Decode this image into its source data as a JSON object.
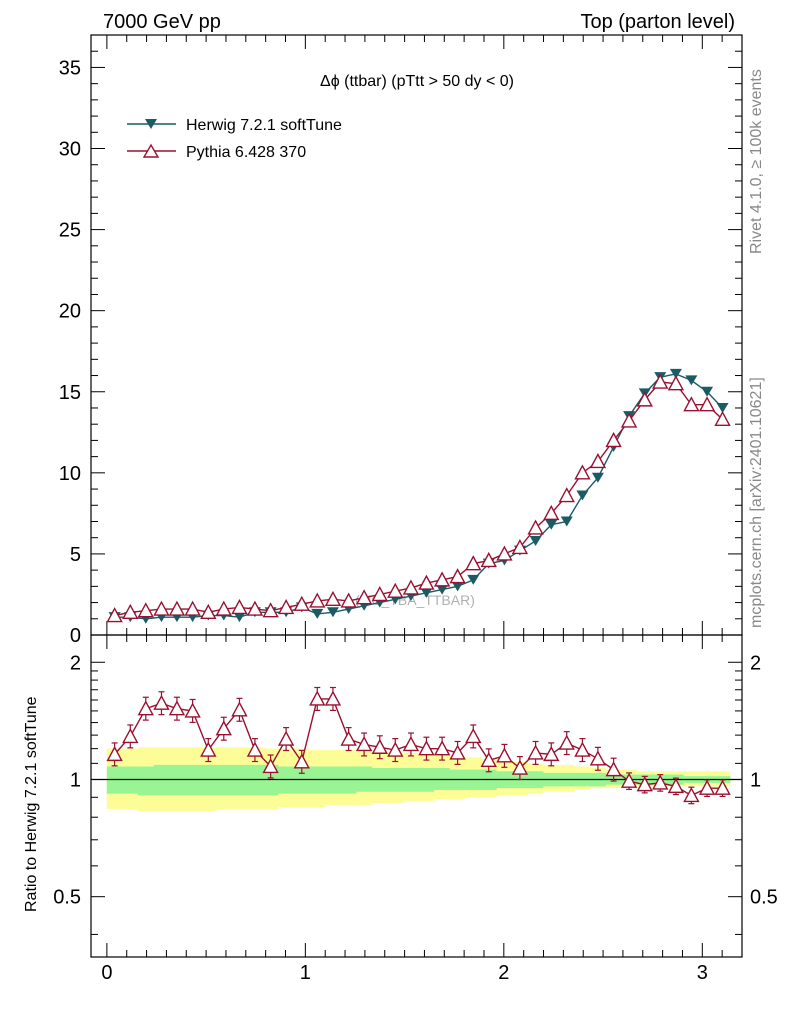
{
  "header": {
    "left": "7000 GeV pp",
    "right": "Top (parton level)"
  },
  "side_labels": {
    "rivet": "Rivet 4.1.0, ≥ 100k events",
    "mcplots": "mcplots.cern.ch [arXiv:2401.10621]"
  },
  "ratio_ylabel": "Ratio to Herwig 7.2.1 softTune",
  "watermark": "(MC_TBA_TTBAR)",
  "colors": {
    "herwig": "#1a5b66",
    "pythia": "#9b1030",
    "band_inner": "#99f594",
    "band_outer": "#fdfd98"
  },
  "chart_data": [
    {
      "type": "line",
      "title": "Δϕ (ttbar) (pTtt > 50 dy < 0)",
      "xlabel": "",
      "ylabel": "",
      "xlim": [
        -0.08,
        3.2
      ],
      "ylim": [
        0,
        37
      ],
      "xticks": [
        "0",
        "1",
        "2",
        "3"
      ],
      "yticks": [
        "0",
        "5",
        "10",
        "15",
        "20",
        "25",
        "30",
        "35"
      ],
      "legend_position": "top-left",
      "x": [
        0.039,
        0.118,
        0.196,
        0.275,
        0.353,
        0.432,
        0.511,
        0.589,
        0.668,
        0.746,
        0.825,
        0.903,
        0.982,
        1.06,
        1.139,
        1.218,
        1.296,
        1.375,
        1.453,
        1.532,
        1.61,
        1.689,
        1.767,
        1.846,
        1.924,
        2.003,
        2.081,
        2.16,
        2.239,
        2.317,
        2.396,
        2.474,
        2.553,
        2.631,
        2.71,
        2.788,
        2.867,
        2.945,
        3.024,
        3.102
      ],
      "series": [
        {
          "name": "Herwig 7.2.1 softTune",
          "marker": "filled-down-triangle",
          "values": [
            1.1,
            1.1,
            1.0,
            1.1,
            1.1,
            1.1,
            1.2,
            1.2,
            1.1,
            1.4,
            1.4,
            1.4,
            1.7,
            1.3,
            1.4,
            1.6,
            1.8,
            2.0,
            2.2,
            2.4,
            2.6,
            2.8,
            3.0,
            3.4,
            4.4,
            4.6,
            5.2,
            5.8,
            6.8,
            7.0,
            8.6,
            9.7,
            11.6,
            13.5,
            14.9,
            15.9,
            16.1,
            15.7,
            15.0,
            14.0
          ]
        },
        {
          "name": "Pythia 6.428 370",
          "marker": "open-up-triangle",
          "values": [
            1.2,
            1.4,
            1.5,
            1.6,
            1.6,
            1.6,
            1.4,
            1.6,
            1.7,
            1.6,
            1.5,
            1.7,
            1.9,
            2.1,
            2.2,
            2.1,
            2.3,
            2.5,
            2.7,
            2.9,
            3.2,
            3.4,
            3.6,
            4.4,
            4.6,
            5.0,
            5.4,
            6.6,
            7.5,
            8.6,
            10.0,
            10.7,
            12.0,
            13.2,
            14.5,
            15.6,
            15.5,
            14.2,
            14.2,
            13.3
          ]
        }
      ]
    },
    {
      "type": "line",
      "title": "",
      "xlabel": "",
      "ylabel": "Ratio to Herwig 7.2.1 softTune",
      "ylim": [
        0.35,
        2.35
      ],
      "log_scale": true,
      "yticks": [
        "0.5",
        "1",
        "2"
      ],
      "xticks": [
        "0",
        "1",
        "2",
        "3"
      ],
      "reference_line": 1,
      "x": [
        0.039,
        0.118,
        0.196,
        0.275,
        0.353,
        0.432,
        0.511,
        0.589,
        0.668,
        0.746,
        0.825,
        0.903,
        0.982,
        1.06,
        1.139,
        1.218,
        1.296,
        1.375,
        1.453,
        1.532,
        1.61,
        1.689,
        1.767,
        1.846,
        1.924,
        2.003,
        2.081,
        2.16,
        2.239,
        2.317,
        2.396,
        2.474,
        2.553,
        2.631,
        2.71,
        2.788,
        2.867,
        2.945,
        3.024,
        3.102
      ],
      "series": [
        {
          "name": "Pythia 6.428 370 / Herwig 7.2.1 softTune",
          "values": [
            1.16,
            1.29,
            1.52,
            1.57,
            1.52,
            1.5,
            1.19,
            1.35,
            1.51,
            1.19,
            1.08,
            1.27,
            1.11,
            1.61,
            1.61,
            1.27,
            1.23,
            1.21,
            1.19,
            1.23,
            1.2,
            1.2,
            1.17,
            1.29,
            1.12,
            1.15,
            1.07,
            1.17,
            1.16,
            1.24,
            1.19,
            1.13,
            1.06,
            0.99,
            0.97,
            0.98,
            0.96,
            0.91,
            0.95,
            0.95
          ]
        }
      ],
      "bands": {
        "inner_lower": [
          0.92,
          0.92,
          0.91,
          0.91,
          0.91,
          0.91,
          0.91,
          0.91,
          0.91,
          0.91,
          0.91,
          0.92,
          0.92,
          0.92,
          0.92,
          0.92,
          0.93,
          0.93,
          0.93,
          0.93,
          0.93,
          0.94,
          0.94,
          0.94,
          0.94,
          0.95,
          0.95,
          0.95,
          0.96,
          0.96,
          0.96,
          0.96,
          0.97,
          0.97,
          0.97,
          0.97,
          0.97,
          0.98,
          0.98,
          0.98
        ],
        "inner_upper": [
          1.08,
          1.08,
          1.08,
          1.09,
          1.09,
          1.09,
          1.09,
          1.09,
          1.09,
          1.09,
          1.09,
          1.08,
          1.08,
          1.08,
          1.08,
          1.08,
          1.08,
          1.07,
          1.07,
          1.07,
          1.07,
          1.07,
          1.06,
          1.06,
          1.06,
          1.05,
          1.05,
          1.05,
          1.04,
          1.04,
          1.04,
          1.04,
          1.03,
          1.03,
          1.03,
          1.03,
          1.03,
          1.02,
          1.02,
          1.02
        ],
        "outer_lower": [
          0.84,
          0.84,
          0.83,
          0.83,
          0.83,
          0.83,
          0.83,
          0.84,
          0.84,
          0.84,
          0.84,
          0.85,
          0.85,
          0.85,
          0.86,
          0.86,
          0.86,
          0.87,
          0.87,
          0.88,
          0.88,
          0.89,
          0.89,
          0.9,
          0.9,
          0.91,
          0.91,
          0.92,
          0.93,
          0.93,
          0.94,
          0.95,
          0.95,
          0.96,
          0.96,
          0.96,
          0.96,
          0.96,
          0.96,
          0.96
        ],
        "outer_upper": [
          1.2,
          1.2,
          1.21,
          1.21,
          1.21,
          1.21,
          1.21,
          1.21,
          1.21,
          1.21,
          1.2,
          1.2,
          1.2,
          1.19,
          1.19,
          1.19,
          1.18,
          1.18,
          1.18,
          1.17,
          1.16,
          1.16,
          1.15,
          1.14,
          1.13,
          1.12,
          1.11,
          1.1,
          1.09,
          1.09,
          1.08,
          1.07,
          1.06,
          1.06,
          1.05,
          1.05,
          1.05,
          1.05,
          1.05,
          1.05
        ]
      }
    }
  ]
}
